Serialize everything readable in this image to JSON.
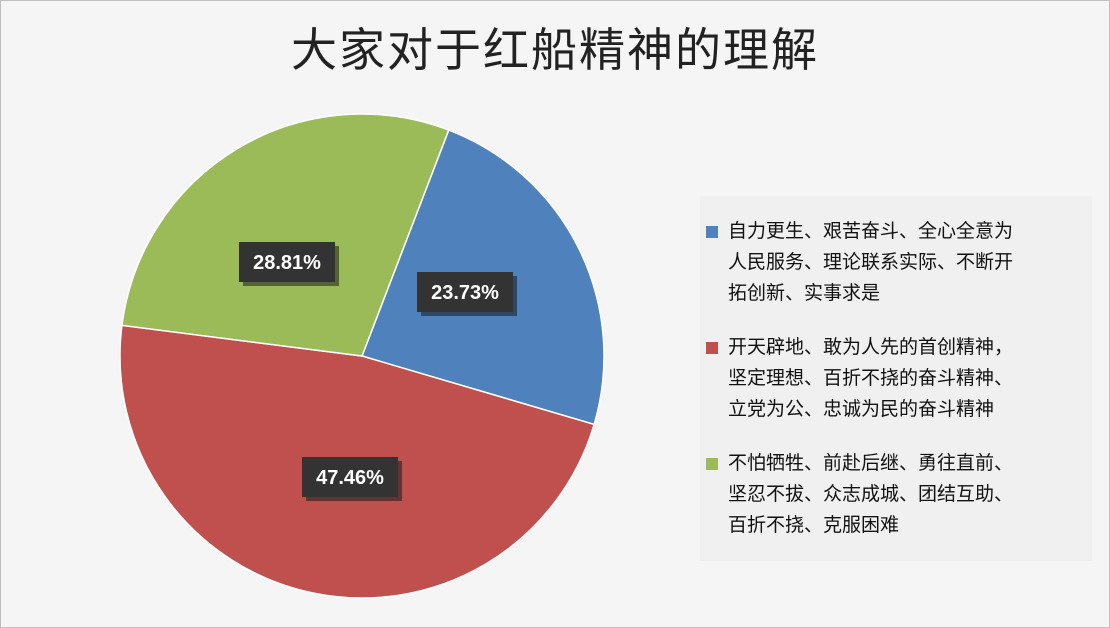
{
  "chart_data": {
    "type": "pie",
    "title": "大家对于红船精神的理解",
    "slices": [
      {
        "label": "自力更生、艰苦奋斗、全心全意为人民服务、理论联系实际、不断开拓创新、实事求是",
        "value": 23.73,
        "data_label": "23.73%",
        "color": "#4f81bd"
      },
      {
        "label": "开天辟地、敢为人先的首创精神，坚定理想、百折不挠的奋斗精神、立党为公、忠诚为民的奋斗精神",
        "value": 47.46,
        "data_label": "47.46%",
        "color": "#c0504d"
      },
      {
        "label": "不怕牺牲、前赴后继、勇往直前、坚忍不拔、众志成城、团结互助、百折不挠、克服困难",
        "value": 28.81,
        "data_label": "28.81%",
        "color": "#9bbb59"
      }
    ],
    "legend_position": "right"
  },
  "legend": {
    "items": [
      {
        "text": "自力更生、艰苦奋斗、全心全意为\n人民服务、理论联系实际、不断开\n拓创新、实事求是"
      },
      {
        "text": "开天辟地、敢为人先的首创精神，\n坚定理想、百折不挠的奋斗精神、\n立党为公、忠诚为民的奋斗精神"
      },
      {
        "text": "不怕牺牲、前赴后继、勇往直前、\n坚忍不拔、众志成城、团结互助、\n百折不挠、克服困难"
      }
    ]
  }
}
